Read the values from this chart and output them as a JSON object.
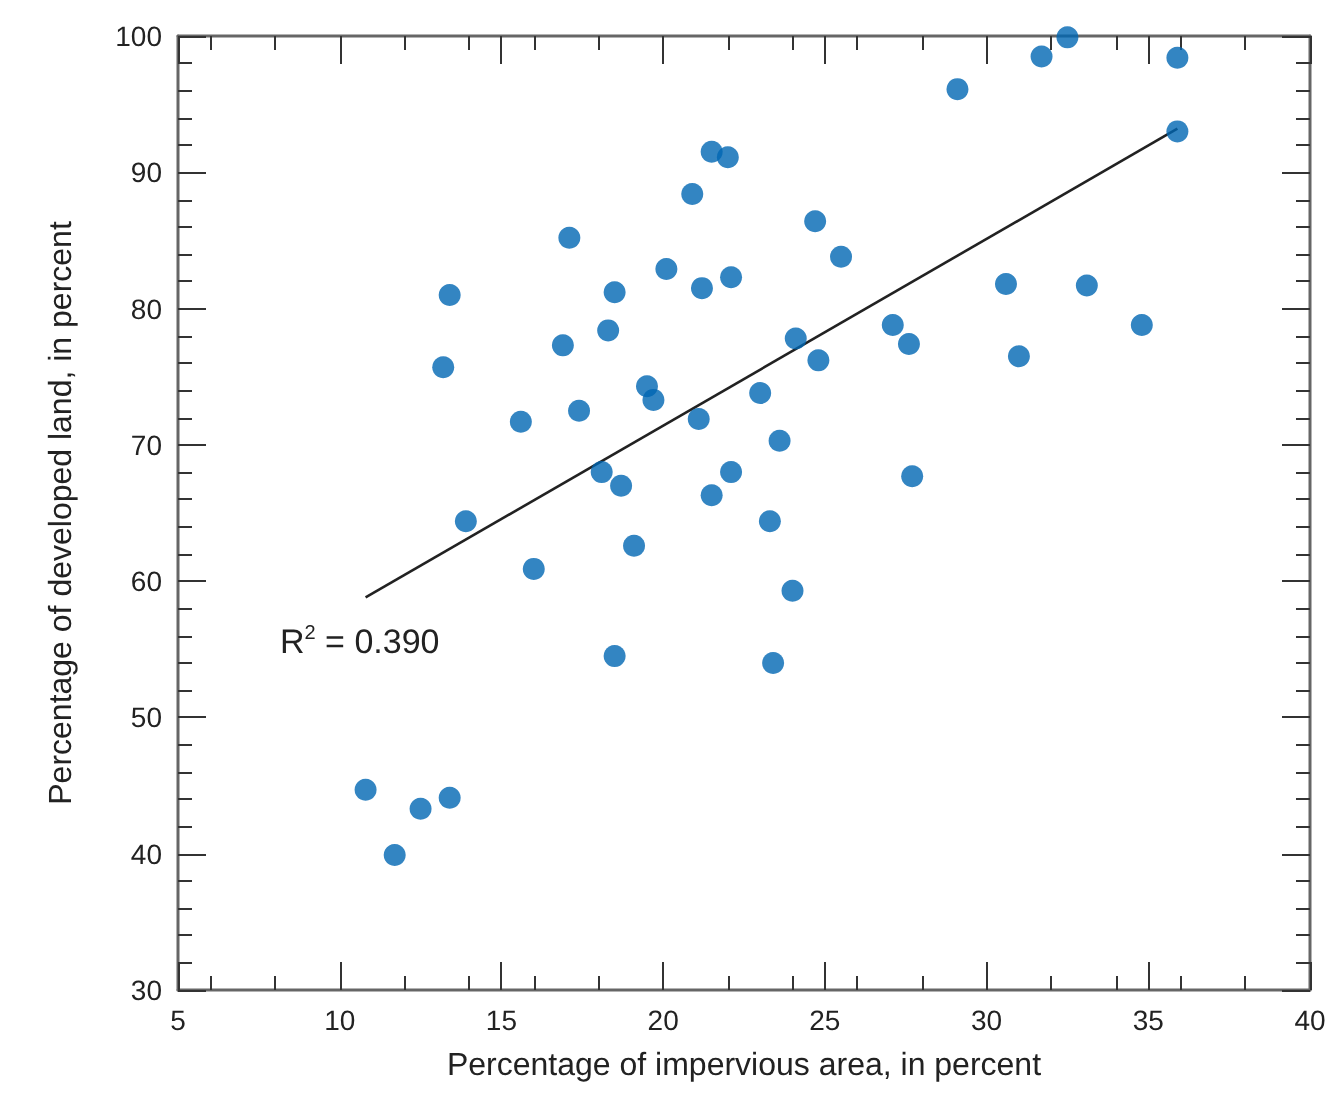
{
  "chart_data": {
    "type": "scatter",
    "xlabel": "Percentage of impervious area, in percent",
    "ylabel": "Percentage of developed land, in percent",
    "xlim": [
      5,
      40
    ],
    "xticks": [
      5,
      10,
      15,
      20,
      25,
      30,
      35,
      40
    ],
    "ylim": [
      30,
      100
    ],
    "yticks": [
      30,
      40,
      50,
      60,
      70,
      80,
      90,
      100
    ],
    "grid": false,
    "marker": "circle",
    "annotations": [
      "R$^{2}$ = 0.390"
    ],
    "series": [
      {
        "color": "#0066b3",
        "x": [
          10.8,
          11.7,
          12.5,
          13.4,
          13.2,
          13.4,
          13.9,
          15.6,
          16,
          16.9,
          17.1,
          17.4,
          18.1,
          18.3,
          18.5,
          18.5,
          18.7,
          19.1,
          19.5,
          19.7,
          20.1,
          20.9,
          21.1,
          21.2,
          21.5,
          21.5,
          22,
          22.1,
          22.1,
          23,
          23.3,
          23.4,
          23.6,
          24,
          24.1,
          24.7,
          24.8,
          25.5,
          27.1,
          27.6,
          27.7,
          29.1,
          30.6,
          31,
          31.7,
          32.5,
          33.1,
          34.8,
          35.9,
          35.9
        ],
        "values": [
          44.7,
          39.9,
          43.3,
          44.1,
          75.7,
          81,
          64.4,
          71.7,
          60.9,
          77.3,
          85.2,
          72.5,
          68,
          78.4,
          54.5,
          81.2,
          67,
          62.6,
          74.3,
          73.3,
          82.9,
          88.4,
          71.9,
          81.5,
          91.5,
          66.3,
          91.1,
          82.3,
          68,
          73.8,
          64.4,
          54,
          70.3,
          59.3,
          77.8,
          86.4,
          76.2,
          83.8,
          78.8,
          77.4,
          67.7,
          96.1,
          81.8,
          76.5,
          98.5,
          99.9,
          81.7,
          78.8,
          98.4,
          93
        ]
      },
      {
        "type": "line",
        "color": "#222222",
        "marker": "none",
        "x": [
          10.8,
          35.9
        ],
        "values": [
          58.8,
          93.2
        ]
      }
    ]
  }
}
